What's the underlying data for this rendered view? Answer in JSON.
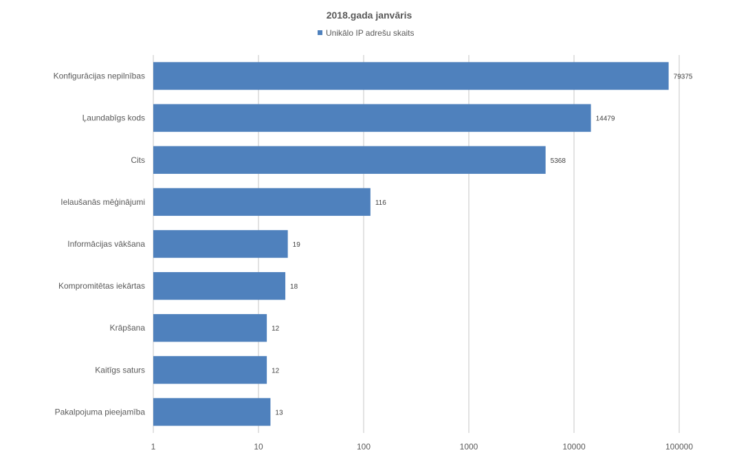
{
  "chart_data": {
    "type": "bar",
    "orientation": "horizontal",
    "title": "2018.gada janvāris",
    "legend": {
      "position": "top",
      "entries": [
        "Unikālo IP adrešu skaits"
      ]
    },
    "scale": "log",
    "xlim": [
      1,
      100000
    ],
    "ticks": [
      1,
      10,
      100,
      1000,
      10000,
      100000
    ],
    "tick_labels": [
      "1",
      "10",
      "100",
      "1000",
      "10000",
      "100000"
    ],
    "grid": true,
    "categories": [
      "Konfigurācijas nepilnības",
      "Ļaundabīgs kods",
      "Cits",
      "Ielaušanās mēģinājumi",
      "Informācijas vākšana",
      "Kompromitētas iekārtas",
      "Krāpšana",
      "Kaitīgs saturs",
      "Pakalpojuma pieejamība"
    ],
    "series": [
      {
        "name": "Unikālo IP adrešu skaits",
        "values": [
          79375,
          14479,
          5368,
          116,
          19,
          18,
          12,
          12,
          13
        ],
        "color": "#4f81bd"
      }
    ]
  }
}
